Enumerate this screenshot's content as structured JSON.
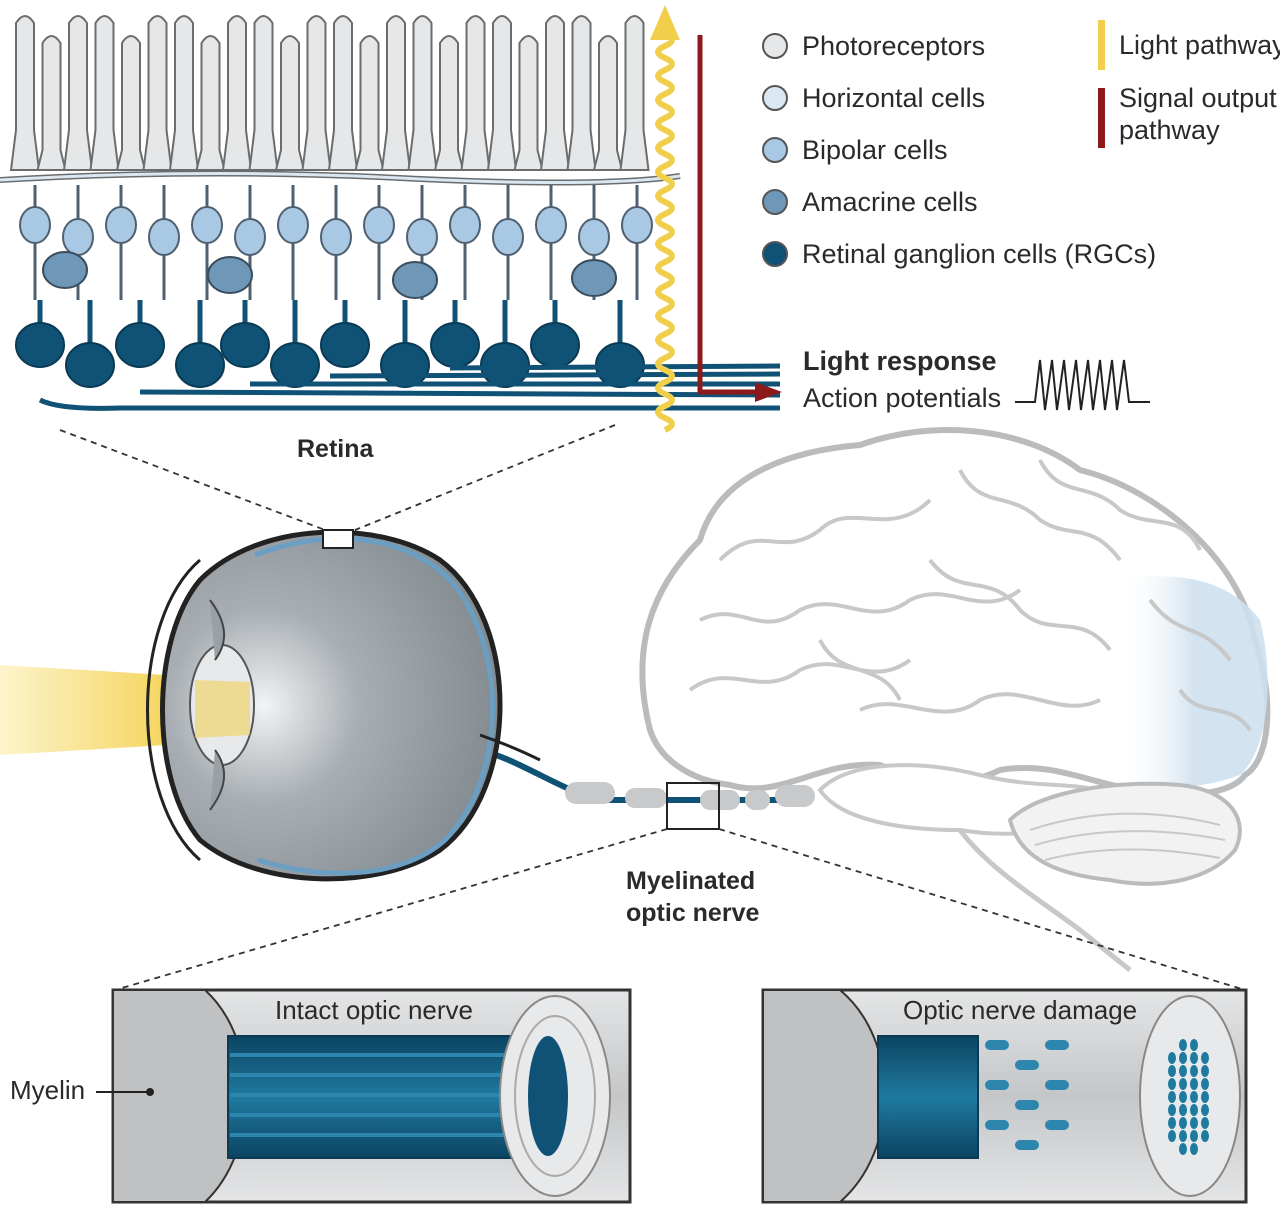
{
  "legend": {
    "cells": [
      {
        "label": "Photoreceptors",
        "color": "#e6e7e8"
      },
      {
        "label": "Horizontal cells",
        "color": "#dbe8f2"
      },
      {
        "label": "Bipolar cells",
        "color": "#a9c8e3"
      },
      {
        "label": "Amacrine cells",
        "color": "#6e97b8"
      },
      {
        "label": "Retinal ganglion cells (RGCs)",
        "color": "#0f5276"
      }
    ],
    "pathways": [
      {
        "label": "Light pathway",
        "color": "#f1cf4b"
      },
      {
        "label": "Signal output pathway",
        "color": "#8c1a1a"
      }
    ]
  },
  "labels": {
    "retina": "Retina",
    "light_response": "Light response",
    "action_potentials": "Action potentials",
    "optic_nerve_line1": "Myelinated",
    "optic_nerve_line2": "optic nerve",
    "intact": "Intact optic nerve",
    "damage": "Optic nerve damage",
    "myelin": "Myelin"
  },
  "colors": {
    "rgc": "#0f5276",
    "myelin_gray": "#c8c9cb",
    "eye_gray": "#8b9298",
    "brain_outline": "#b9bbbd",
    "visual_cortex": "#d6e4f0"
  }
}
